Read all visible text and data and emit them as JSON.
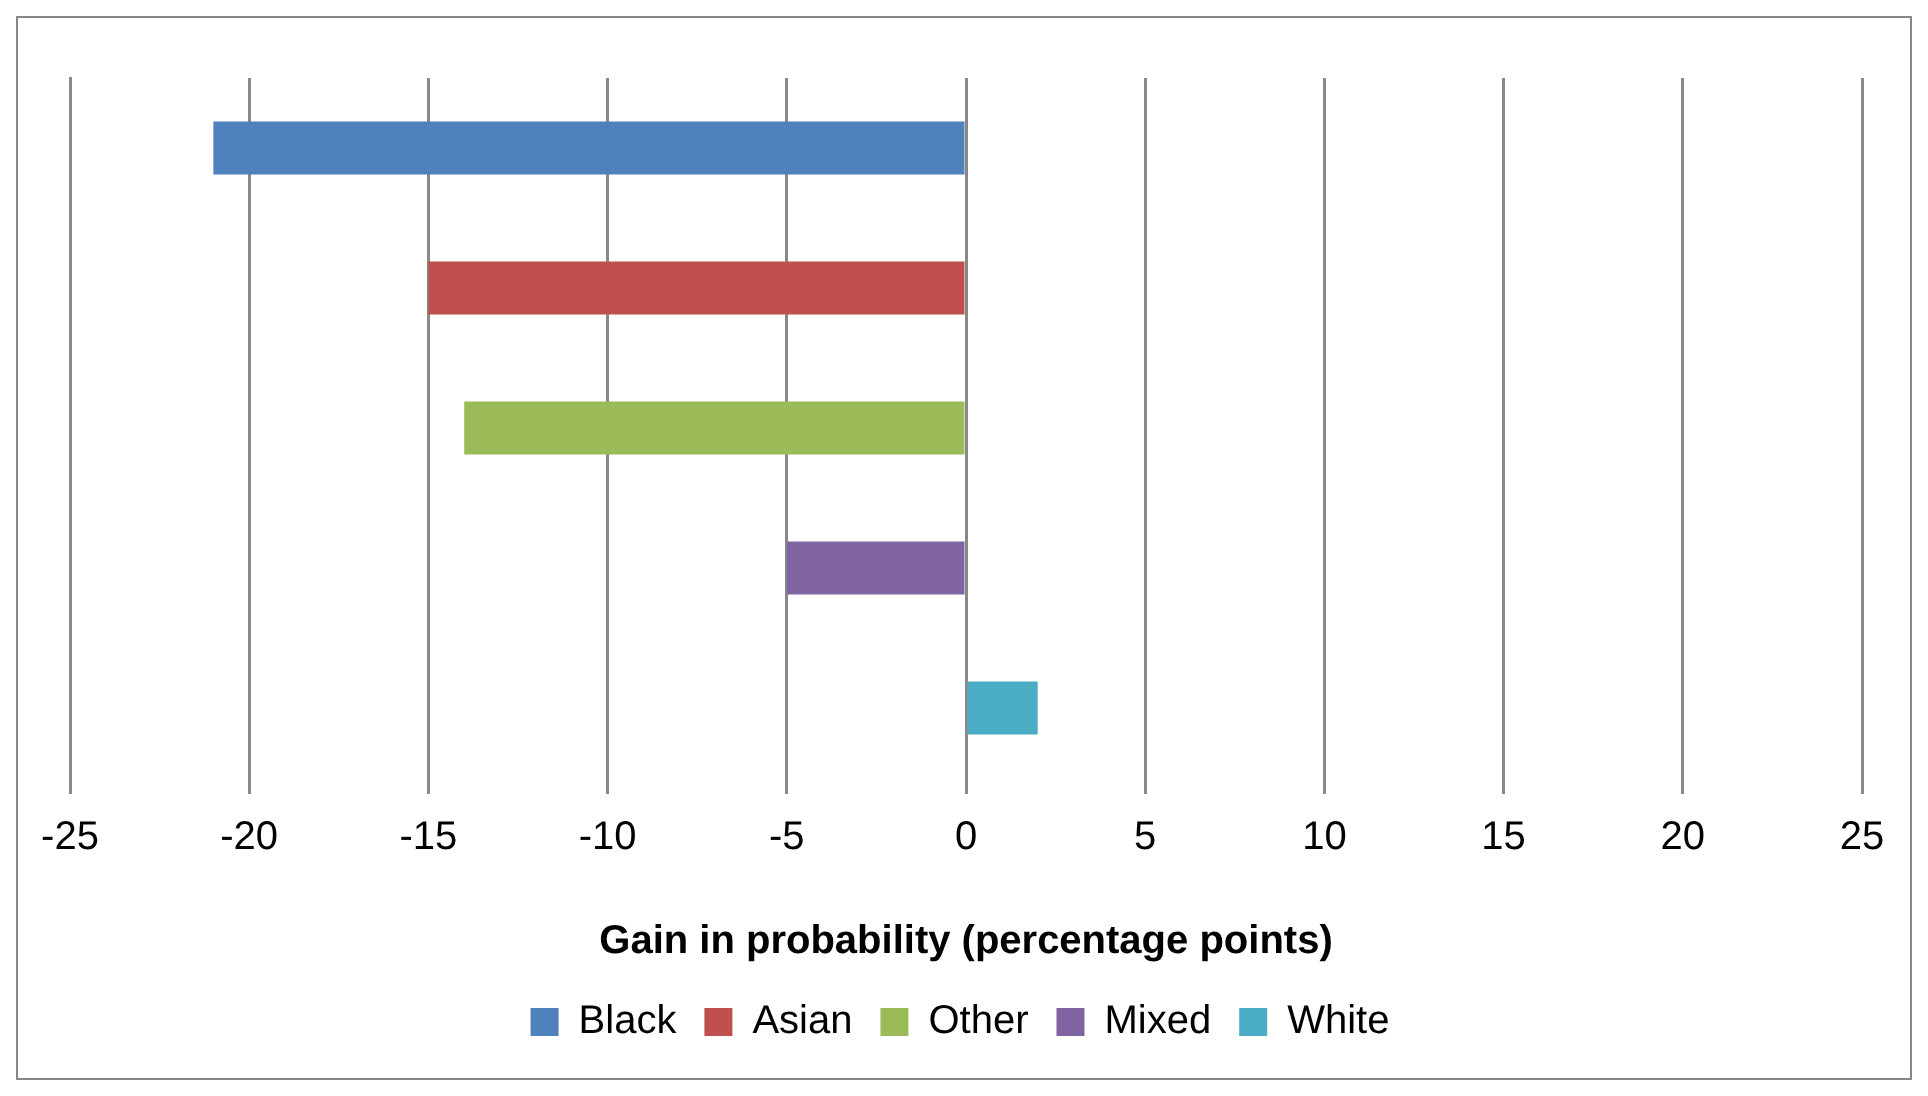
{
  "chart_data": {
    "type": "bar",
    "orientation": "horizontal",
    "xlabel": "Gain in probability (percentage points)",
    "categories": [
      null
    ],
    "series": [
      {
        "name": "Black",
        "color": "#4f81bd",
        "values": [
          -21
        ]
      },
      {
        "name": "Asian",
        "color": "#c0504d",
        "values": [
          -15
        ]
      },
      {
        "name": "Other",
        "color": "#9bbb59",
        "values": [
          -14
        ]
      },
      {
        "name": "Mixed",
        "color": "#8064a2",
        "values": [
          -5
        ]
      },
      {
        "name": "White",
        "color": "#4bacc6",
        "values": [
          2
        ]
      }
    ],
    "xlim": [
      -25,
      25
    ],
    "xticks": [
      -25,
      -20,
      -15,
      -10,
      -5,
      0,
      5,
      10,
      15,
      20,
      25
    ],
    "grid": "x",
    "legend": "bottom"
  }
}
